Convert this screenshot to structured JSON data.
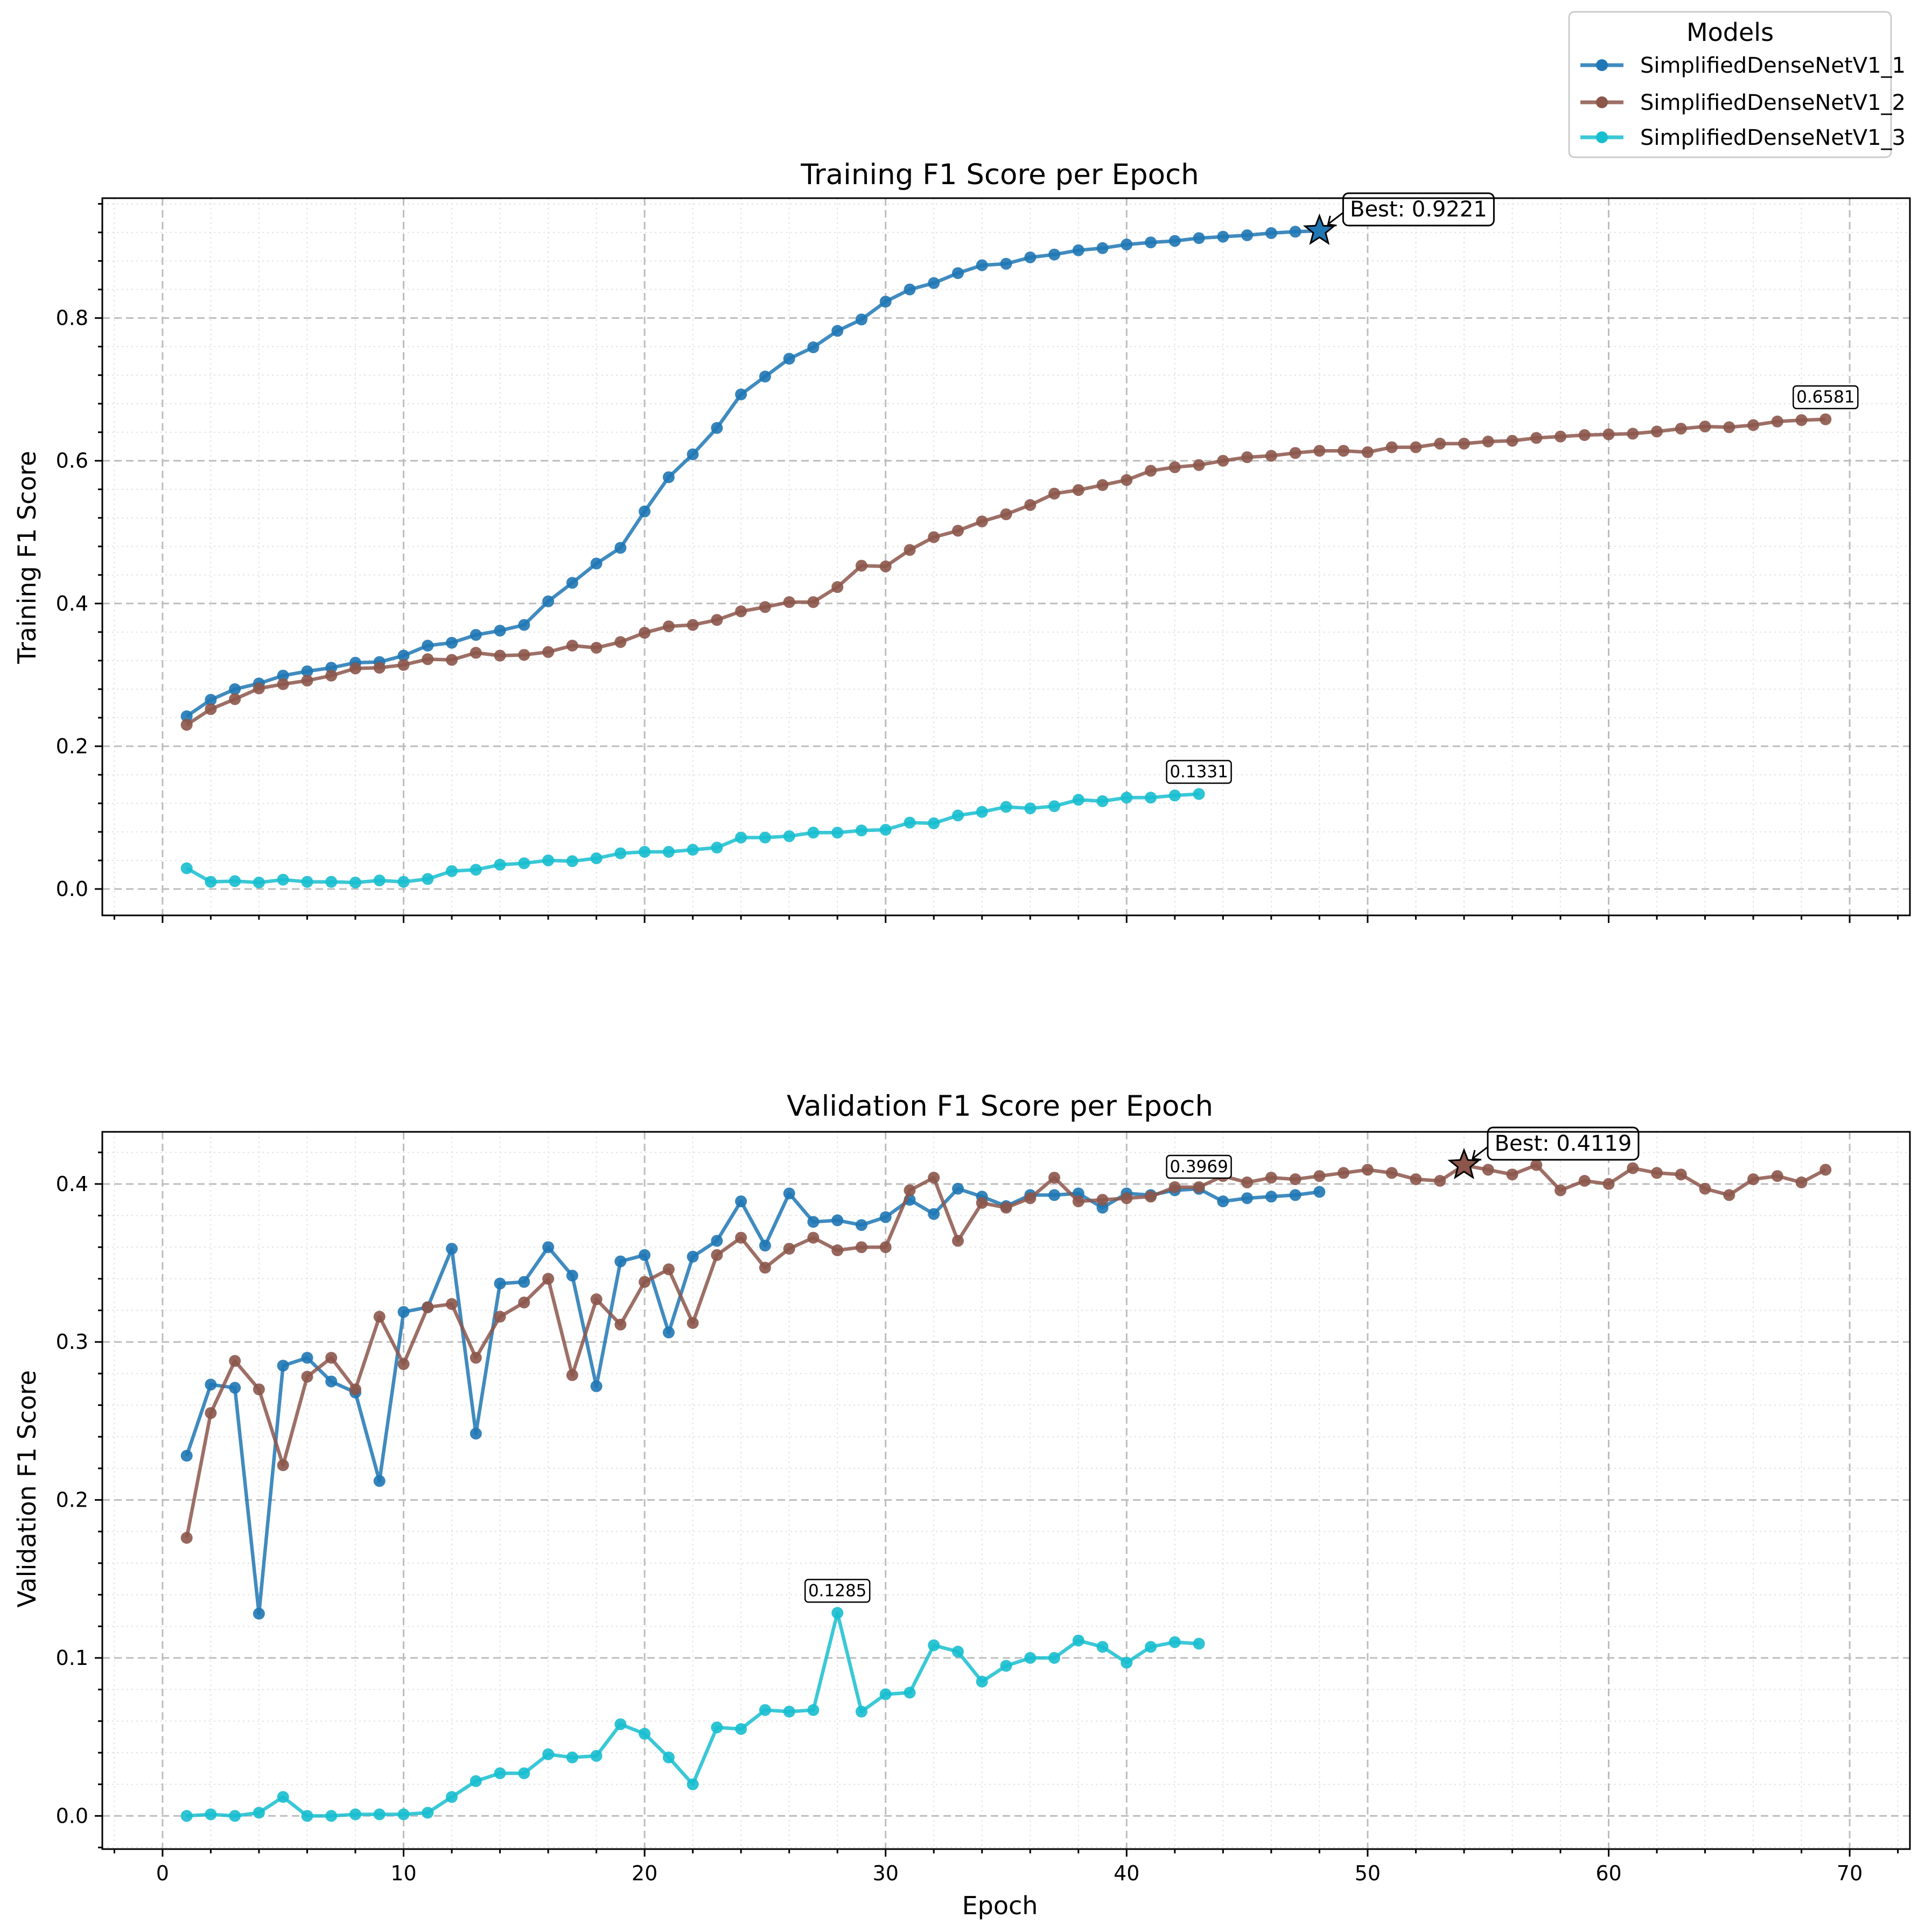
{
  "colors": {
    "model1": "#1f77b4",
    "model2": "#8c564b",
    "model3": "#17becf"
  },
  "legend": {
    "title": "Models",
    "placement": "upper-right",
    "entries": [
      "SimplifiedDenseNetV1_1",
      "SimplifiedDenseNetV1_2",
      "SimplifiedDenseNetV1_3"
    ]
  },
  "chart_data": [
    {
      "type": "line",
      "title": "Training F1 Score per Epoch",
      "xlabel": "",
      "ylabel": "Training F1 Score",
      "xlim": [
        -2.5,
        72.5
      ],
      "ylim": [
        -0.037,
        0.968
      ],
      "xticks": [
        0,
        10,
        20,
        30,
        40,
        50,
        60,
        70
      ],
      "yticks": [
        0.0,
        0.2,
        0.4,
        0.6,
        0.8
      ],
      "grid": true,
      "series": [
        {
          "name": "SimplifiedDenseNetV1_1",
          "x_start": 1,
          "values": [
            0.242,
            0.265,
            0.28,
            0.288,
            0.299,
            0.305,
            0.31,
            0.317,
            0.318,
            0.327,
            0.341,
            0.345,
            0.356,
            0.362,
            0.37,
            0.403,
            0.429,
            0.456,
            0.478,
            0.529,
            0.577,
            0.609,
            0.646,
            0.693,
            0.718,
            0.743,
            0.759,
            0.782,
            0.798,
            0.823,
            0.84,
            0.849,
            0.863,
            0.874,
            0.876,
            0.885,
            0.889,
            0.895,
            0.898,
            0.903,
            0.906,
            0.908,
            0.912,
            0.914,
            0.916,
            0.919,
            0.921,
            0.9221
          ]
        },
        {
          "name": "SimplifiedDenseNetV1_2",
          "x_start": 1,
          "values": [
            0.23,
            0.252,
            0.266,
            0.281,
            0.287,
            0.292,
            0.299,
            0.309,
            0.31,
            0.314,
            0.322,
            0.321,
            0.331,
            0.327,
            0.328,
            0.332,
            0.341,
            0.338,
            0.346,
            0.359,
            0.368,
            0.37,
            0.377,
            0.389,
            0.395,
            0.402,
            0.402,
            0.423,
            0.453,
            0.452,
            0.475,
            0.493,
            0.502,
            0.515,
            0.525,
            0.538,
            0.554,
            0.559,
            0.566,
            0.573,
            0.586,
            0.591,
            0.594,
            0.6,
            0.605,
            0.607,
            0.611,
            0.614,
            0.614,
            0.612,
            0.619,
            0.619,
            0.624,
            0.624,
            0.627,
            0.628,
            0.632,
            0.634,
            0.636,
            0.637,
            0.638,
            0.641,
            0.645,
            0.648,
            0.647,
            0.65,
            0.655,
            0.657,
            0.6581
          ]
        },
        {
          "name": "SimplifiedDenseNetV1_3",
          "x_start": 1,
          "values": [
            0.029,
            0.01,
            0.011,
            0.009,
            0.013,
            0.01,
            0.01,
            0.009,
            0.012,
            0.01,
            0.014,
            0.025,
            0.027,
            0.034,
            0.036,
            0.04,
            0.039,
            0.043,
            0.05,
            0.052,
            0.052,
            0.055,
            0.058,
            0.072,
            0.072,
            0.074,
            0.079,
            0.079,
            0.082,
            0.083,
            0.093,
            0.092,
            0.103,
            0.108,
            0.115,
            0.113,
            0.116,
            0.125,
            0.123,
            0.128,
            0.128,
            0.131,
            0.1331
          ]
        }
      ],
      "annotations": [
        {
          "text": "Best: 0.9221",
          "x": 48,
          "y": 0.9221,
          "series": 0,
          "style": "best"
        },
        {
          "text": "0.6581",
          "x": 69,
          "y": 0.6581,
          "series": 1,
          "style": "final"
        },
        {
          "text": "0.1331",
          "x": 43,
          "y": 0.1331,
          "series": 2,
          "style": "final"
        }
      ]
    },
    {
      "type": "line",
      "title": "Validation F1 Score per Epoch",
      "xlabel": "Epoch",
      "ylabel": "Validation F1 Score",
      "xlim": [
        -2.5,
        72.5
      ],
      "ylim": [
        -0.021,
        0.433
      ],
      "xticks": [
        0,
        10,
        20,
        30,
        40,
        50,
        60,
        70
      ],
      "yticks": [
        0.0,
        0.1,
        0.2,
        0.3,
        0.4
      ],
      "grid": true,
      "series": [
        {
          "name": "SimplifiedDenseNetV1_1",
          "x_start": 1,
          "values": [
            0.228,
            0.273,
            0.271,
            0.128,
            0.285,
            0.29,
            0.275,
            0.268,
            0.212,
            0.319,
            0.322,
            0.359,
            0.242,
            0.337,
            0.338,
            0.36,
            0.342,
            0.272,
            0.351,
            0.355,
            0.306,
            0.354,
            0.364,
            0.389,
            0.361,
            0.394,
            0.376,
            0.377,
            0.374,
            0.379,
            0.39,
            0.381,
            0.397,
            0.392,
            0.386,
            0.393,
            0.393,
            0.394,
            0.385,
            0.394,
            0.393,
            0.396,
            0.3969,
            0.389,
            0.391,
            0.392,
            0.393,
            0.395
          ]
        },
        {
          "name": "SimplifiedDenseNetV1_2",
          "x_start": 1,
          "values": [
            0.176,
            0.255,
            0.288,
            0.27,
            0.222,
            0.278,
            0.29,
            0.27,
            0.316,
            0.286,
            0.322,
            0.324,
            0.29,
            0.316,
            0.325,
            0.34,
            0.279,
            0.327,
            0.311,
            0.338,
            0.346,
            0.312,
            0.355,
            0.366,
            0.347,
            0.359,
            0.366,
            0.358,
            0.36,
            0.36,
            0.396,
            0.404,
            0.364,
            0.388,
            0.385,
            0.391,
            0.404,
            0.389,
            0.39,
            0.391,
            0.392,
            0.398,
            0.398,
            0.405,
            0.401,
            0.404,
            0.403,
            0.405,
            0.407,
            0.409,
            0.407,
            0.403,
            0.402,
            0.4119,
            0.409,
            0.406,
            0.412,
            0.396,
            0.402,
            0.4,
            0.41,
            0.407,
            0.406,
            0.397,
            0.393,
            0.403,
            0.405,
            0.401,
            0.409
          ]
        },
        {
          "name": "SimplifiedDenseNetV1_3",
          "x_start": 1,
          "values": [
            0.0,
            0.001,
            0.0,
            0.002,
            0.012,
            0.0,
            0.0,
            0.001,
            0.001,
            0.001,
            0.002,
            0.012,
            0.022,
            0.027,
            0.027,
            0.039,
            0.037,
            0.038,
            0.058,
            0.052,
            0.037,
            0.02,
            0.056,
            0.055,
            0.067,
            0.066,
            0.067,
            0.1285,
            0.066,
            0.077,
            0.078,
            0.108,
            0.104,
            0.085,
            0.095,
            0.1,
            0.1,
            0.111,
            0.107,
            0.097,
            0.107,
            0.11,
            0.109
          ]
        }
      ],
      "annotations": [
        {
          "text": "Best: 0.4119",
          "x": 54,
          "y": 0.4119,
          "series": 1,
          "style": "best"
        },
        {
          "text": "0.3969",
          "x": 43,
          "y": 0.3969,
          "series": 0,
          "style": "final"
        },
        {
          "text": "0.1285",
          "x": 28,
          "y": 0.1285,
          "series": 2,
          "style": "final"
        }
      ]
    }
  ]
}
